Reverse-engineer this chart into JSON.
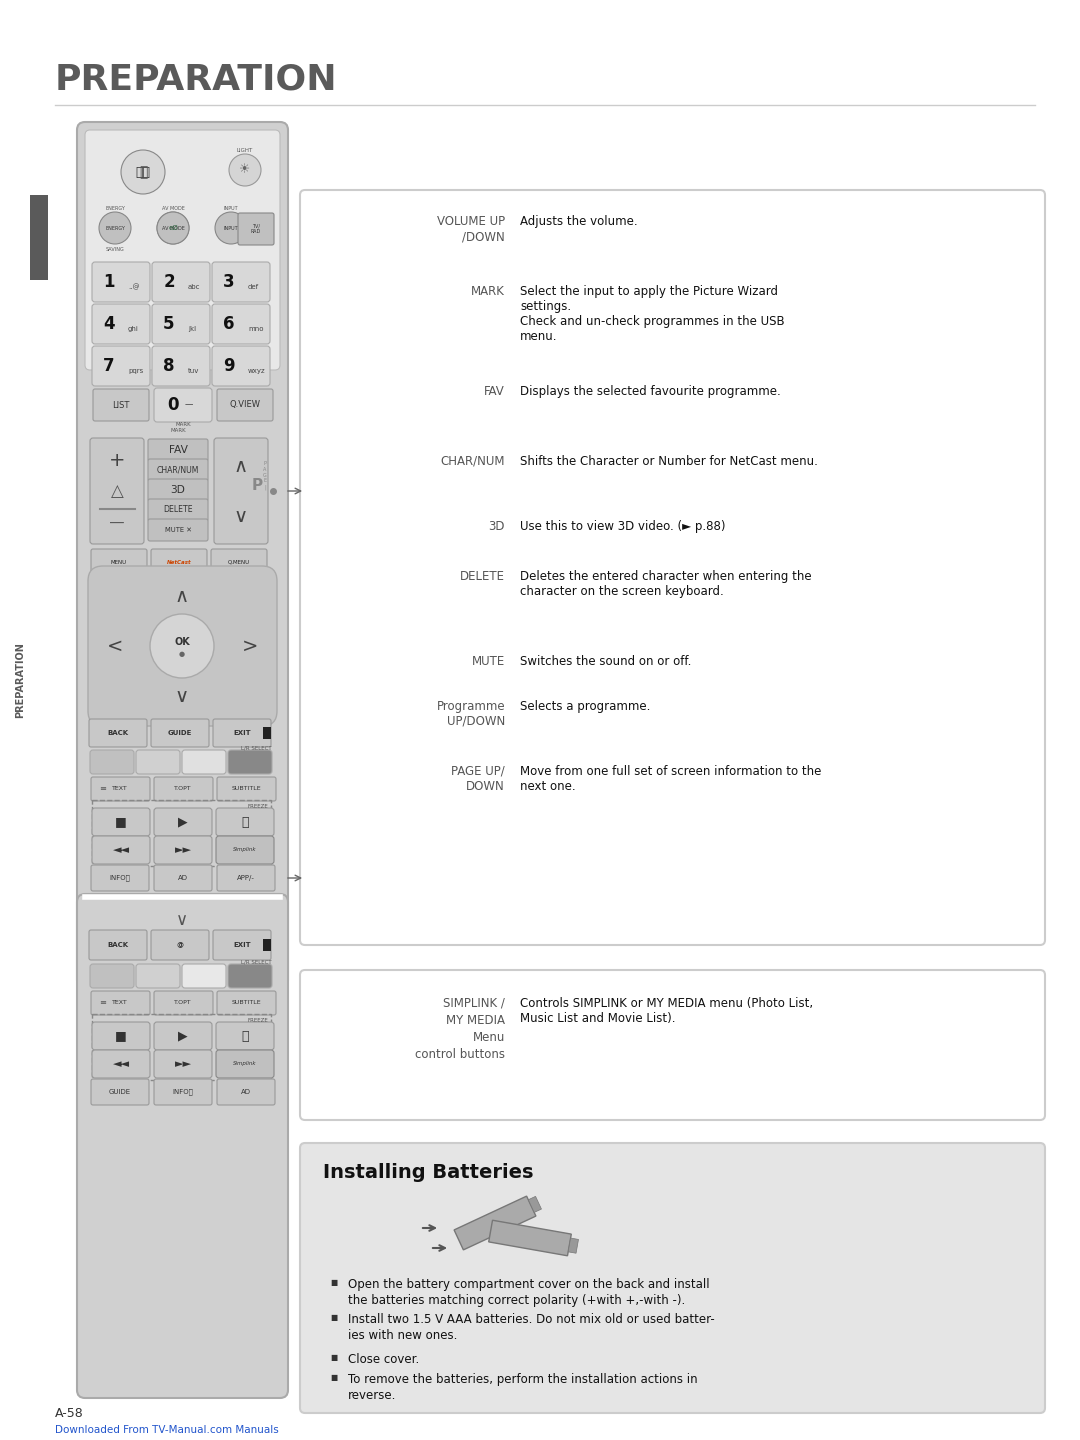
{
  "bg_color": "#ffffff",
  "title": "PREPARATION",
  "title_color": "#5a5a5a",
  "title_fontsize": 26,
  "page_label": "A-58",
  "page_url": "Downloaded From TV-Manual.com Manuals",
  "box1": {
    "entries": [
      {
        "label": "VOLUME UP\n/DOWN",
        "desc": "Adjusts the volume."
      },
      {
        "label": "MARK",
        "desc": "Select the input to apply the Picture Wizard\nsettings.\nCheck and un-check programmes in the USB\nmenu."
      },
      {
        "label": "FAV",
        "desc": "Displays the selected favourite programme."
      },
      {
        "label": "CHAR/NUM",
        "desc": "Shifts the Character or Number for NetCast menu."
      },
      {
        "label": "3D",
        "desc": "Use this to view 3D video. (► p.88)"
      },
      {
        "label": "DELETE",
        "desc": "Deletes the entered character when entering the\ncharacter on the screen keyboard."
      },
      {
        "label": "MUTE",
        "desc": "Switches the sound on or off."
      },
      {
        "label": "Programme\nUP/DOWN",
        "desc": "Selects a programme."
      },
      {
        "label": "PAGE UP/\nDOWN",
        "desc": "Move from one full set of screen information to the\nnext one."
      }
    ]
  },
  "box2_entries": [
    {
      "label": "SIMPLINK /\nMY MEDIA\nMenu\ncontrol buttons",
      "desc": "Controls SIMPLINK or MY MEDIA menu (Photo List,\nMusic List and Movie List)."
    }
  ],
  "install_title": "Installing Batteries",
  "install_bullets": [
    "Open the battery compartment cover on the back and install\nthe batteries matching correct polarity (+with +,-with -).",
    "Install two 1.5 V AAA batteries. Do not mix old or used batter-\nies with new ones.",
    "Close cover.",
    "To remove the batteries, perform the installation actions in\nreverse."
  ]
}
